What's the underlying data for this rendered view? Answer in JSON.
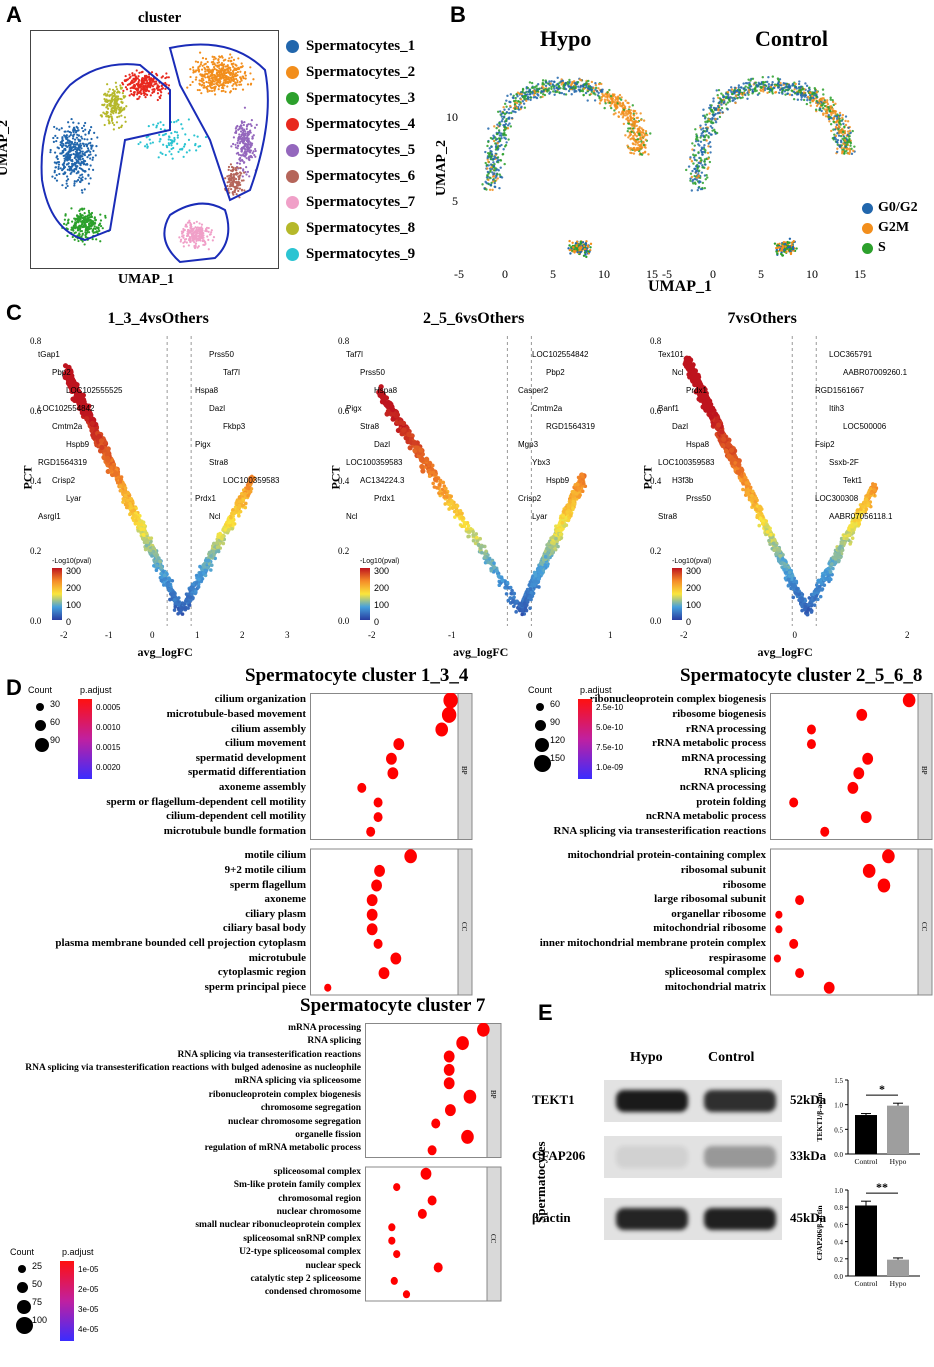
{
  "panels": {
    "A": "A",
    "B": "B",
    "C": "C",
    "D": "D",
    "E": "E"
  },
  "panelA": {
    "title": "cluster",
    "xlabel": "UMAP_1",
    "ylabel": "UMAP_2",
    "clusters": [
      {
        "name": "Spermatocytes_1",
        "color": "#2166ac"
      },
      {
        "name": "Spermatocytes_2",
        "color": "#f28e1c"
      },
      {
        "name": "Spermatocytes_3",
        "color": "#2ca02c"
      },
      {
        "name": "Spermatocytes_4",
        "color": "#e8281e"
      },
      {
        "name": "Spermatocytes_5",
        "color": "#9467bd"
      },
      {
        "name": "Spermatocytes_6",
        "color": "#b5655a"
      },
      {
        "name": "Spermatocytes_7",
        "color": "#f0a0c8"
      },
      {
        "name": "Spermatocytes_8",
        "color": "#b5b82a"
      },
      {
        "name": "Spermatocytes_9",
        "color": "#2bc4d2"
      }
    ]
  },
  "panelB": {
    "title_left": "Hypo",
    "title_right": "Control",
    "xlabel": "UMAP_1",
    "ylabel": "UMAP_2",
    "yticks": [
      "10",
      "5"
    ],
    "xticks_left": [
      "-5",
      "0",
      "5",
      "10",
      "15"
    ],
    "xticks_right": [
      "-5",
      "0",
      "5",
      "10",
      "15"
    ],
    "phases": [
      {
        "name": "G0/G2",
        "color": "#2166ac"
      },
      {
        "name": "G2M",
        "color": "#f28e1c"
      },
      {
        "name": "S",
        "color": "#2ca02c"
      }
    ]
  },
  "panelC": {
    "plots": [
      {
        "title": "1_3_4vsOthers",
        "xlabel": "avg_logFC",
        "ylabel": "PCT",
        "xticks": [
          "-2",
          "-1",
          "0",
          "1",
          "2",
          "3"
        ],
        "yticks": [
          "0.8",
          "0.6",
          "0.4",
          "0.2",
          "0.0"
        ],
        "legend_title": "-Log10(pval)",
        "legend_ticks": [
          "300",
          "200",
          "100",
          "0"
        ],
        "genes": [
          "tGap1",
          "Pbp2",
          "LOC102555525",
          "LOC102554842",
          "Cmtm2a",
          "Hspb9",
          "RGD1564319",
          "Crisp2",
          "Lyar",
          "Asrgl1",
          "Prss50",
          "Taf7l",
          "Hspa8",
          "Dazl",
          "Fkbp3",
          "Pigx",
          "Stra8",
          "LOC100359583",
          "Prdx1",
          "Ncl"
        ]
      },
      {
        "title": "2_5_6vsOthers",
        "xlabel": "avg_logFC",
        "ylabel": "PCT",
        "xticks": [
          "-2",
          "-1",
          "0",
          "1"
        ],
        "yticks": [
          "0.8",
          "0.6",
          "0.4",
          "0.2",
          "0.0"
        ],
        "legend_title": "-Log10(pval)",
        "legend_ticks": [
          "300",
          "200",
          "100",
          "0"
        ],
        "genes": [
          "Taf7l",
          "Prss50",
          "Hspa8",
          "Pigx",
          "Stra8",
          "Dazl",
          "LOC100359583",
          "AC134224.3",
          "Prdx1",
          "Ncl",
          "LOC102554842",
          "Pbp2",
          "Casper2",
          "Cmtm2a",
          "RGD1564319",
          "Mgp3",
          "Ybx3",
          "Hspb9",
          "Crisp2",
          "Lyar"
        ]
      },
      {
        "title": "7vsOthers",
        "xlabel": "avg_logFC",
        "ylabel": "PCT",
        "xticks": [
          "-2",
          "0",
          "2"
        ],
        "yticks": [
          "0.8",
          "0.6",
          "0.4",
          "0.2",
          "0.0"
        ],
        "legend_title": "-Log10(pval)",
        "legend_ticks": [
          "300",
          "200",
          "100",
          "0"
        ],
        "genes": [
          "Tex101",
          "Ncl",
          "Prdx1",
          "Banf1",
          "Dazl",
          "Hspa8",
          "LOC100359583",
          "H3f3b",
          "Prss50",
          "Stra8",
          "LOC365791",
          "AABR07009260.1",
          "RGD1561667",
          "Itih3",
          "LOC500006",
          "Fsip2",
          "Ssxb-2F",
          "Tekt1",
          "LOC300308",
          "AABR07056118.1"
        ]
      }
    ]
  },
  "panelD": {
    "c134": {
      "title": "Spermatocyte cluster 1_3_4",
      "count_title": "Count",
      "count_ticks": [
        "30",
        "60",
        "90"
      ],
      "padj_title": "p.adjust",
      "padj_ticks": [
        "0.0005",
        "0.0010",
        "0.0015",
        "0.0020"
      ],
      "bp_label": "BP",
      "cc_label": "CC",
      "bp": [
        {
          "term": "cilium organization",
          "x": 0.95,
          "s": 8,
          "c": "#ff0000"
        },
        {
          "term": "microtubule-based movement",
          "x": 0.94,
          "s": 8,
          "c": "#ff0000"
        },
        {
          "term": "cilium assembly",
          "x": 0.89,
          "s": 7,
          "c": "#ff0000"
        },
        {
          "term": "cilium movement",
          "x": 0.6,
          "s": 6,
          "c": "#ff0000"
        },
        {
          "term": "spermatid development",
          "x": 0.55,
          "s": 6,
          "c": "#ff0000"
        },
        {
          "term": "spermatid differentiation",
          "x": 0.56,
          "s": 6,
          "c": "#ff0000"
        },
        {
          "term": "axoneme assembly",
          "x": 0.35,
          "s": 5,
          "c": "#ff0000"
        },
        {
          "term": "sperm or flagellum-dependent cell motility",
          "x": 0.46,
          "s": 5,
          "c": "#ff0000"
        },
        {
          "term": "cilium-dependent cell motility",
          "x": 0.46,
          "s": 5,
          "c": "#ff0000"
        },
        {
          "term": "microtubule bundle formation",
          "x": 0.41,
          "s": 5,
          "c": "#ff0000"
        }
      ],
      "cc": [
        {
          "term": "motile cilium",
          "x": 0.68,
          "s": 7,
          "c": "#ff0000"
        },
        {
          "term": "9+2 motile cilium",
          "x": 0.47,
          "s": 6,
          "c": "#ff0000"
        },
        {
          "term": "sperm flagellum",
          "x": 0.45,
          "s": 6,
          "c": "#ff0000"
        },
        {
          "term": "axoneme",
          "x": 0.42,
          "s": 6,
          "c": "#ff0000"
        },
        {
          "term": "ciliary plasm",
          "x": 0.42,
          "s": 6,
          "c": "#ff0000"
        },
        {
          "term": "ciliary basal body",
          "x": 0.42,
          "s": 6,
          "c": "#ff0000"
        },
        {
          "term": "plasma membrane bounded cell projection cytoplasm",
          "x": 0.46,
          "s": 5,
          "c": "#ff0000"
        },
        {
          "term": "microtubule",
          "x": 0.58,
          "s": 6,
          "c": "#ff0000"
        },
        {
          "term": "cytoplasmic region",
          "x": 0.5,
          "s": 6,
          "c": "#ff0000"
        },
        {
          "term": "sperm principal piece",
          "x": 0.12,
          "s": 4,
          "c": "#ff0000"
        }
      ]
    },
    "c2568": {
      "title": "Spermatocyte cluster 2_5_6_8",
      "count_title": "Count",
      "count_ticks": [
        "60",
        "90",
        "120",
        "150"
      ],
      "padj_title": "p.adjust",
      "padj_ticks": [
        "2.5e-10",
        "5.0e-10",
        "7.5e-10",
        "1.0e-09"
      ],
      "bp_label": "BP",
      "cc_label": "CC",
      "bp": [
        {
          "term": "ribonucleoprotein complex biogenesis",
          "x": 0.94,
          "s": 7,
          "c": "#ff0000"
        },
        {
          "term": "ribosome biogenesis",
          "x": 0.62,
          "s": 6,
          "c": "#ff0000"
        },
        {
          "term": "rRNA processing",
          "x": 0.28,
          "s": 5,
          "c": "#ff0000"
        },
        {
          "term": "rRNA metabolic process",
          "x": 0.28,
          "s": 5,
          "c": "#ff0000"
        },
        {
          "term": "mRNA processing",
          "x": 0.66,
          "s": 6,
          "c": "#ff0000"
        },
        {
          "term": "RNA splicing",
          "x": 0.6,
          "s": 6,
          "c": "#ff0000"
        },
        {
          "term": "ncRNA processing",
          "x": 0.56,
          "s": 6,
          "c": "#ff0000"
        },
        {
          "term": "protein folding",
          "x": 0.16,
          "s": 5,
          "c": "#ff0000"
        },
        {
          "term": "ncRNA metabolic process",
          "x": 0.65,
          "s": 6,
          "c": "#ff0000"
        },
        {
          "term": "RNA splicing via transesterification reactions",
          "x": 0.37,
          "s": 5,
          "c": "#ff0000"
        }
      ],
      "cc": [
        {
          "term": "mitochondrial protein-containing complex",
          "x": 0.8,
          "s": 7,
          "c": "#ff0000"
        },
        {
          "term": "ribosomal subunit",
          "x": 0.67,
          "s": 7,
          "c": "#ff0000"
        },
        {
          "term": "ribosome",
          "x": 0.77,
          "s": 7,
          "c": "#ff0000"
        },
        {
          "term": "large ribosomal subunit",
          "x": 0.2,
          "s": 5,
          "c": "#ff0000"
        },
        {
          "term": "organellar ribosome",
          "x": 0.06,
          "s": 4,
          "c": "#ff0000"
        },
        {
          "term": "mitochondrial ribosome",
          "x": 0.06,
          "s": 4,
          "c": "#ff0000"
        },
        {
          "term": "inner mitochondrial membrane protein complex",
          "x": 0.16,
          "s": 5,
          "c": "#ff0000"
        },
        {
          "term": "respirasome",
          "x": 0.05,
          "s": 4,
          "c": "#ff0000"
        },
        {
          "term": "spliceosomal complex",
          "x": 0.2,
          "s": 5,
          "c": "#ff0000"
        },
        {
          "term": "mitochondrial matrix",
          "x": 0.4,
          "s": 6,
          "c": "#ff0000"
        }
      ]
    },
    "c7": {
      "title": "Spermatocyte cluster 7",
      "count_title": "Count",
      "count_ticks": [
        "25",
        "50",
        "75",
        "100"
      ],
      "padj_title": "p.adjust",
      "padj_ticks": [
        "1e-05",
        "2e-05",
        "3e-05",
        "4e-05"
      ],
      "bp_label": "BP",
      "cc_label": "CC",
      "bp": [
        {
          "term": "mRNA processing",
          "x": 0.97,
          "s": 7,
          "c": "#ff0000"
        },
        {
          "term": "RNA splicing",
          "x": 0.8,
          "s": 7,
          "c": "#ff0000"
        },
        {
          "term": "RNA splicing via transesterification reactions",
          "x": 0.69,
          "s": 6,
          "c": "#ff0000"
        },
        {
          "term": "RNA splicing via transesterification reactions with bulged adenosine as nucleophile",
          "x": 0.69,
          "s": 6,
          "c": "#ff0000"
        },
        {
          "term": "mRNA splicing via spliceosome",
          "x": 0.69,
          "s": 6,
          "c": "#ff0000"
        },
        {
          "term": "ribonucleoprotein complex biogenesis",
          "x": 0.86,
          "s": 7,
          "c": "#ff0000"
        },
        {
          "term": "chromosome segregation",
          "x": 0.7,
          "s": 6,
          "c": "#ff0000"
        },
        {
          "term": "nuclear chromosome segregation",
          "x": 0.58,
          "s": 5,
          "c": "#ff0000"
        },
        {
          "term": "organelle fission",
          "x": 0.84,
          "s": 7,
          "c": "#ff0000"
        },
        {
          "term": "regulation of mRNA metabolic process",
          "x": 0.55,
          "s": 5,
          "c": "#ff0000"
        }
      ],
      "cc": [
        {
          "term": "spliceosomal complex",
          "x": 0.5,
          "s": 6,
          "c": "#ff0000"
        },
        {
          "term": "Sm-like protein family complex",
          "x": 0.26,
          "s": 4,
          "c": "#ff0000"
        },
        {
          "term": "chromosomal region",
          "x": 0.55,
          "s": 5,
          "c": "#ff0000"
        },
        {
          "term": "nuclear chromosome",
          "x": 0.47,
          "s": 5,
          "c": "#ff0000"
        },
        {
          "term": "small nuclear ribonucleoprotein complex",
          "x": 0.22,
          "s": 4,
          "c": "#ff0000"
        },
        {
          "term": "spliceosomal snRNP complex",
          "x": 0.22,
          "s": 4,
          "c": "#ff0000"
        },
        {
          "term": "U2-type spliceosomal complex",
          "x": 0.26,
          "s": 4,
          "c": "#ff0000"
        },
        {
          "term": "nuclear speck",
          "x": 0.6,
          "s": 5,
          "c": "#ff0000"
        },
        {
          "term": "catalytic step 2 spliceosome",
          "x": 0.24,
          "s": 4,
          "c": "#ff0000"
        },
        {
          "term": "condensed chromosome",
          "x": 0.34,
          "s": 4,
          "c": "#ff0000"
        }
      ]
    }
  },
  "panelE": {
    "col_hypo": "Hypo",
    "col_control": "Control",
    "side_label": "Spermatocytes",
    "bands": [
      {
        "name": "TEKT1",
        "kda": "52kDa"
      },
      {
        "name": "CFAP206",
        "kda": "33kDa"
      },
      {
        "name": "β-actin",
        "kda": "45kDa"
      }
    ]
  },
  "chart_data": [
    {
      "type": "bar",
      "title": "",
      "ylabel": "TEKT1/β-actin",
      "categories": [
        "Control",
        "Hypo"
      ],
      "values": [
        0.79,
        0.98
      ],
      "errors": [
        0.03,
        0.05
      ],
      "ylim": [
        0,
        1.5
      ],
      "yticks": [
        "0.0",
        "0.5",
        "1.0",
        "1.5"
      ],
      "significance": "*",
      "colors": [
        "#000000",
        "#9e9e9e"
      ]
    },
    {
      "type": "bar",
      "title": "",
      "ylabel": "CFAP206/β-actin",
      "categories": [
        "Control",
        "Hypo"
      ],
      "values": [
        0.82,
        0.19
      ],
      "errors": [
        0.05,
        0.02
      ],
      "ylim": [
        0,
        1.0
      ],
      "yticks": [
        "0.0",
        "0.2",
        "0.4",
        "0.6",
        "0.8",
        "1.0"
      ],
      "significance": "**",
      "colors": [
        "#000000",
        "#9e9e9e"
      ]
    }
  ]
}
